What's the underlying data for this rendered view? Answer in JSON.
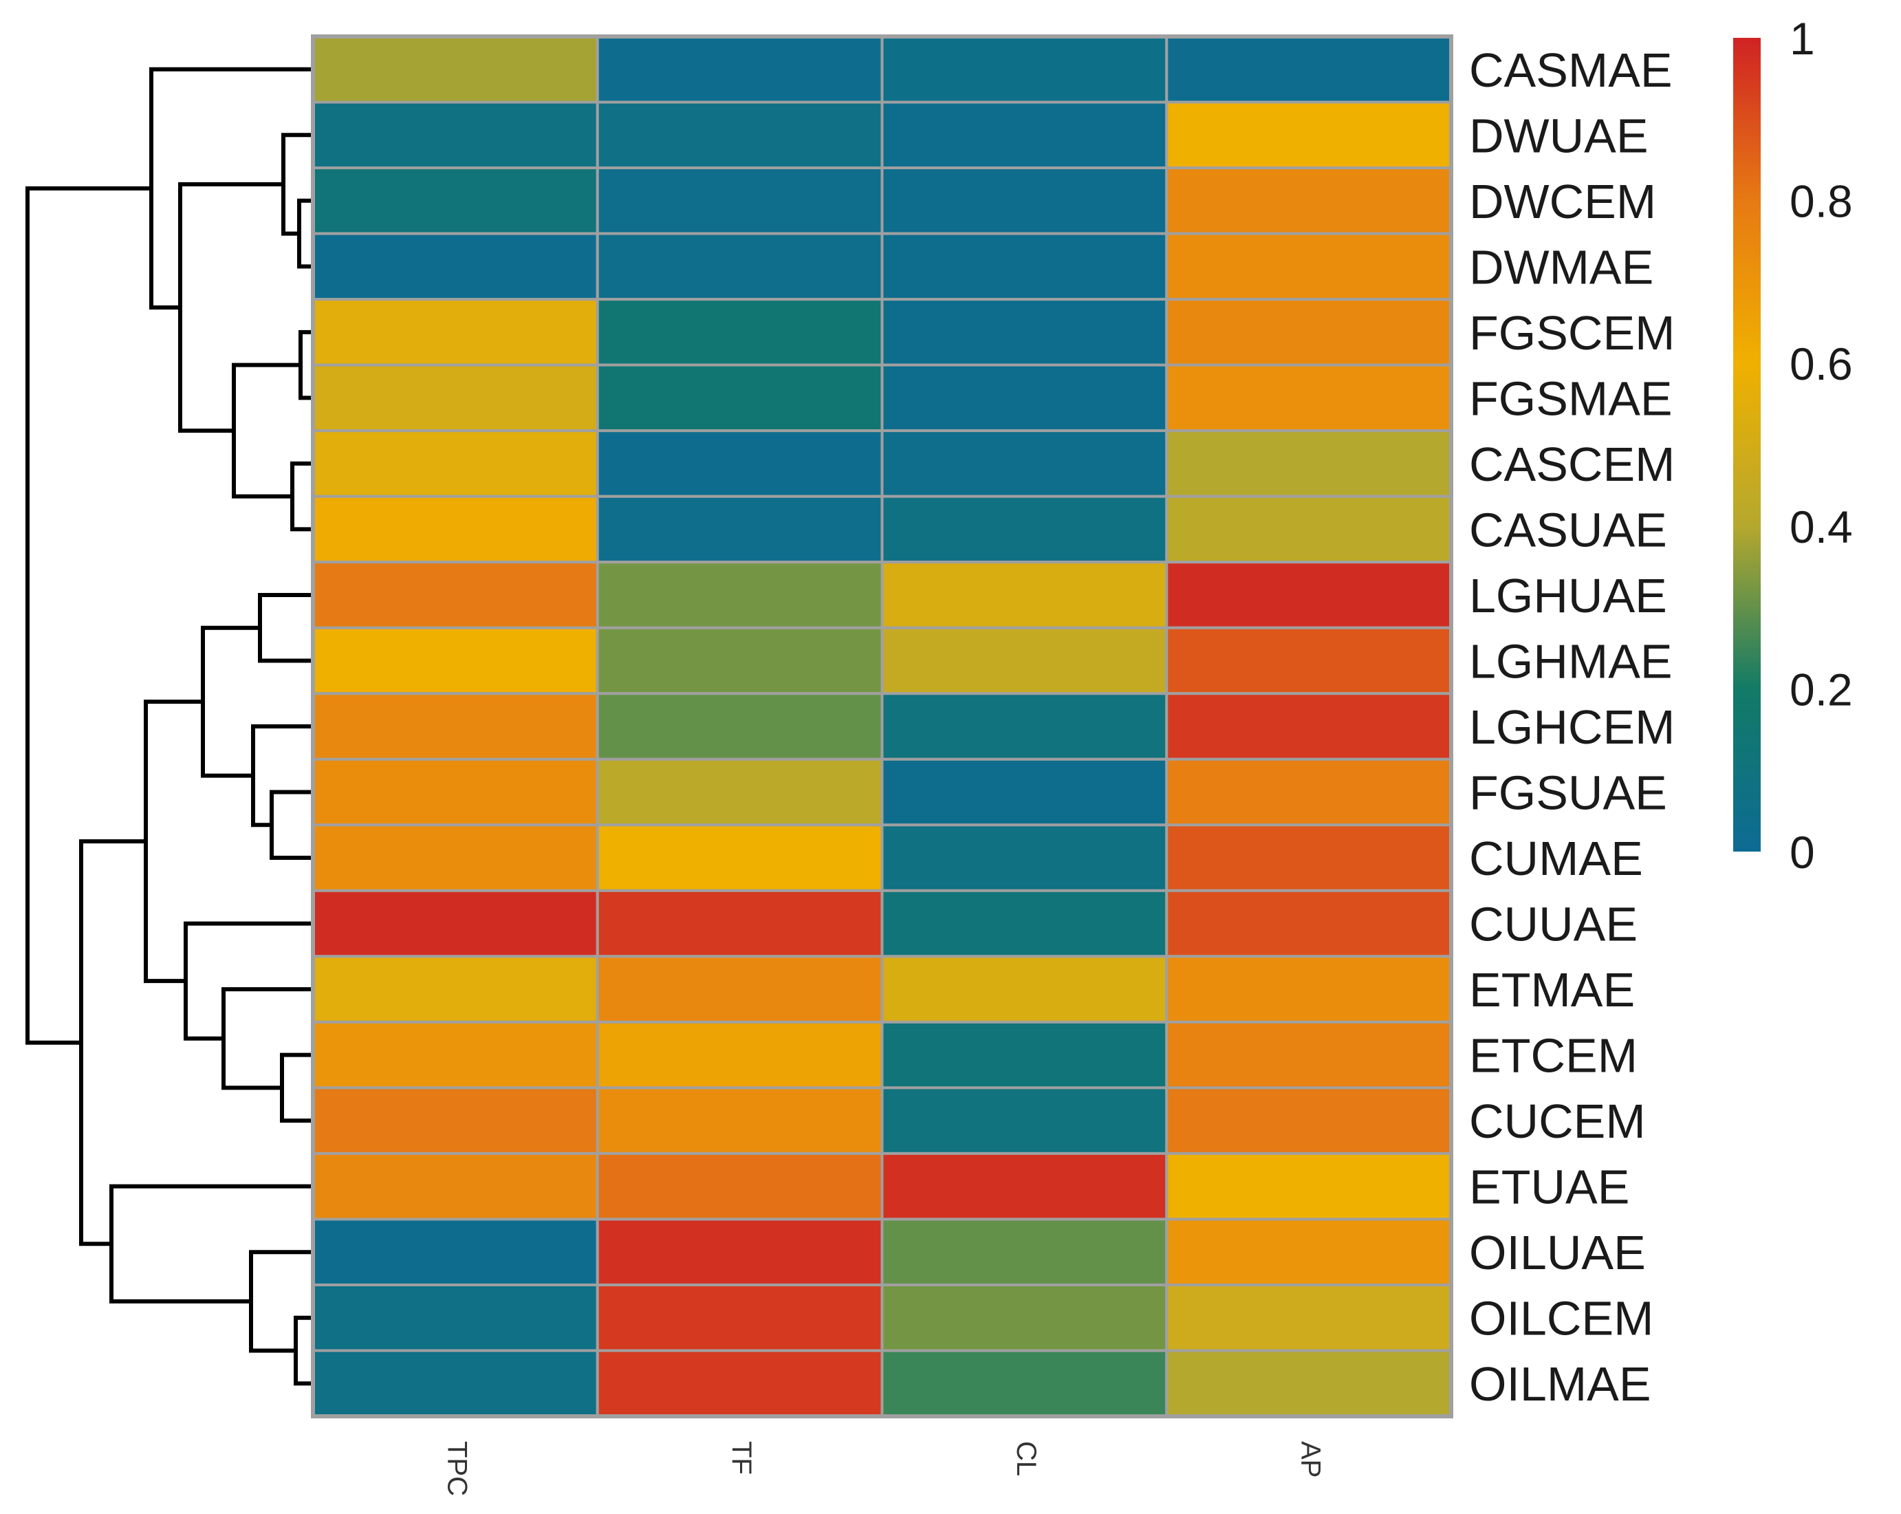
{
  "chart_data": {
    "type": "heatmap",
    "rows": [
      "CASMAE",
      "DWUAE",
      "DWCEM",
      "DWMAE",
      "FGSCEM",
      "FGSMAE",
      "CASCEM",
      "CASUAE",
      "LGHUAE",
      "LGHMAE",
      "LGHCEM",
      "FGSUAE",
      "CUMAE",
      "CUUAE",
      "ETMAE",
      "ETCEM",
      "CUCEM",
      "ETUAE",
      "OILUAE",
      "OILCEM",
      "OILMAE"
    ],
    "columns": [
      "TPC",
      "TF",
      "CL",
      "AP"
    ],
    "values": [
      [
        0.38,
        0.02,
        0.05,
        0.02
      ],
      [
        0.08,
        0.06,
        0.03,
        0.6
      ],
      [
        0.12,
        0.04,
        0.03,
        0.75
      ],
      [
        0.02,
        0.04,
        0.03,
        0.73
      ],
      [
        0.55,
        0.15,
        0.03,
        0.75
      ],
      [
        0.5,
        0.15,
        0.03,
        0.72
      ],
      [
        0.55,
        0.02,
        0.04,
        0.4
      ],
      [
        0.62,
        0.04,
        0.08,
        0.42
      ],
      [
        0.8,
        0.32,
        0.52,
        0.98
      ],
      [
        0.6,
        0.32,
        0.45,
        0.88
      ],
      [
        0.75,
        0.3,
        0.1,
        0.95
      ],
      [
        0.73,
        0.42,
        0.03,
        0.78
      ],
      [
        0.73,
        0.6,
        0.08,
        0.88
      ],
      [
        0.98,
        0.95,
        0.12,
        0.9
      ],
      [
        0.55,
        0.75,
        0.52,
        0.73
      ],
      [
        0.7,
        0.65,
        0.12,
        0.77
      ],
      [
        0.8,
        0.73,
        0.1,
        0.8
      ],
      [
        0.75,
        0.82,
        0.97,
        0.6
      ],
      [
        0.02,
        0.97,
        0.3,
        0.7
      ],
      [
        0.06,
        0.95,
        0.32,
        0.48
      ],
      [
        0.06,
        0.95,
        0.25,
        0.4
      ]
    ],
    "colorbar": {
      "min": 0,
      "max": 1,
      "ticks": [
        "1",
        "0.8",
        "0.6",
        "0.4",
        "0.2",
        "0"
      ]
    },
    "colorscale": [
      "#0d6b94",
      "#127a66",
      "#b5a82e",
      "#f0b000",
      "#e67a14",
      "#cf2323"
    ],
    "dendrogram": "rows"
  }
}
